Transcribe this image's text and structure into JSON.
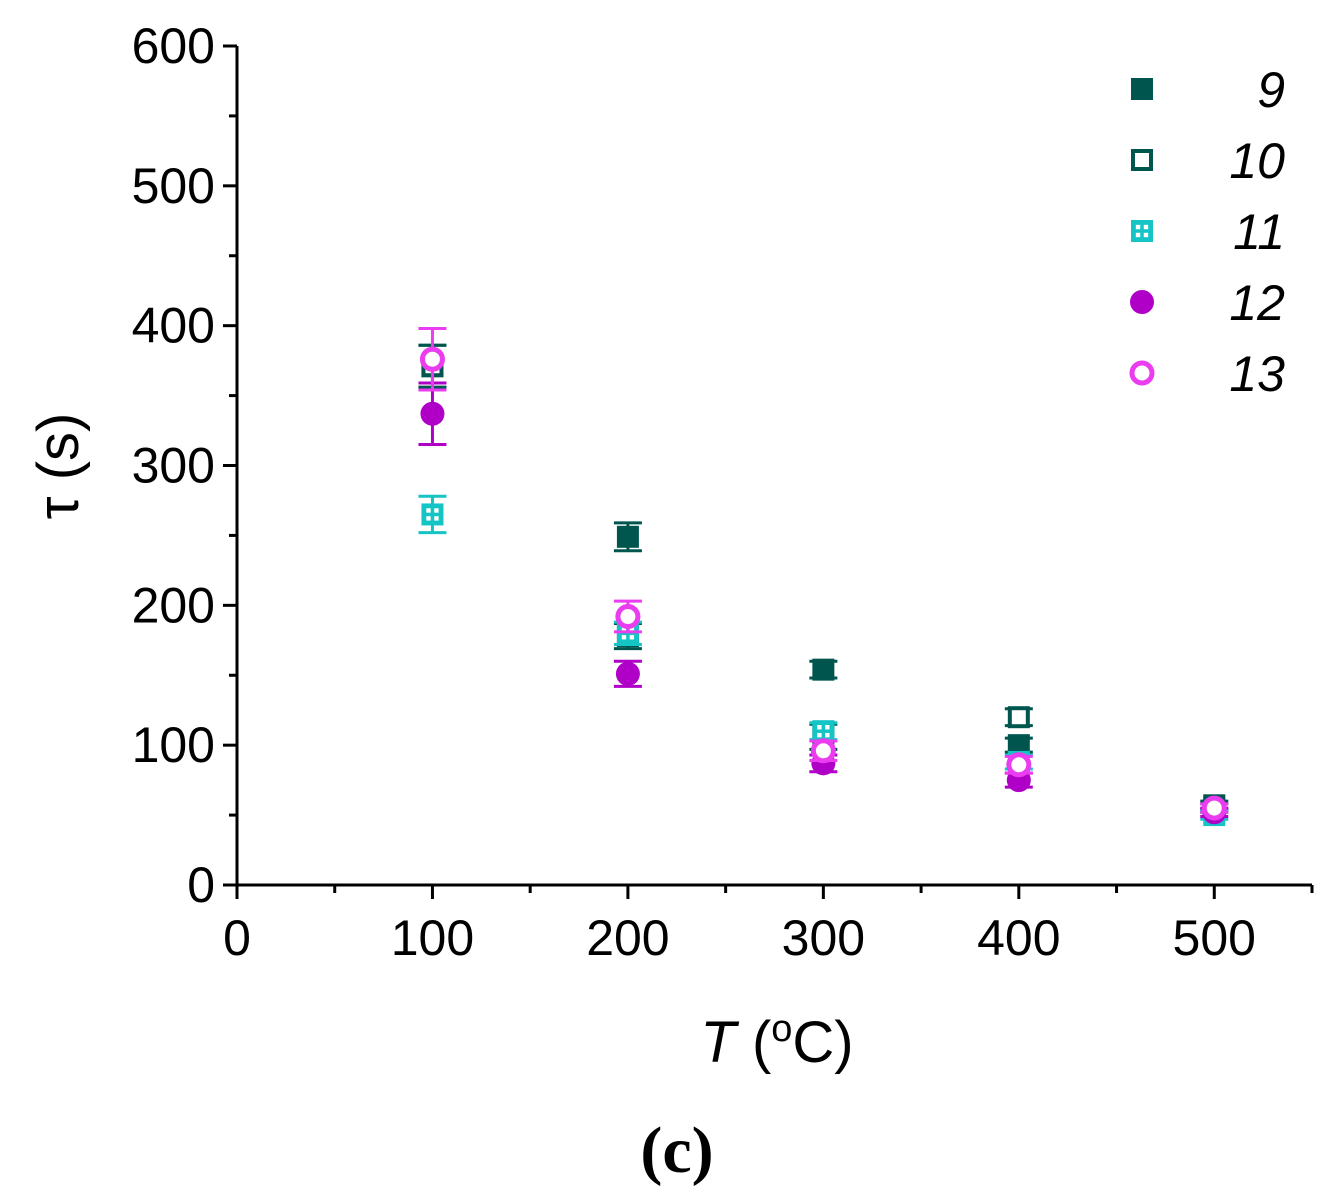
{
  "chart_data": {
    "type": "scatter",
    "xlabel_var": "T",
    "xlabel_open": " (",
    "xlabel_sup": "o",
    "xlabel_unit": "C)",
    "ylabel": "τ (s)",
    "caption": "(c)",
    "xlim": [
      0,
      550
    ],
    "ylim": [
      0,
      600
    ],
    "x_ticks": [
      0,
      100,
      200,
      300,
      400,
      500
    ],
    "y_ticks": [
      0,
      100,
      200,
      300,
      400,
      500,
      600
    ],
    "legend_position": "top-right",
    "series": [
      {
        "name": "9",
        "marker": "square-filled",
        "color": "#00564f",
        "x": [
          100,
          200,
          300,
          400,
          500
        ],
        "y": [
          371,
          249,
          154,
          100,
          55
        ],
        "err": [
          15,
          10,
          6,
          5,
          3
        ]
      },
      {
        "name": "10",
        "marker": "square-open",
        "color": "#00564f",
        "x": [
          100,
          200,
          300,
          400,
          500
        ],
        "y": [
          371,
          178,
          106,
          120,
          57
        ],
        "err": [
          15,
          9,
          9,
          6,
          3
        ]
      },
      {
        "name": "11",
        "marker": "square-grid",
        "color": "#15c4c4",
        "x": [
          100,
          200,
          300,
          400,
          500
        ],
        "y": [
          265,
          180,
          110,
          88,
          50
        ],
        "err": [
          13,
          8,
          6,
          5,
          3
        ]
      },
      {
        "name": "12",
        "marker": "circle-filled",
        "color": "#b000c8",
        "x": [
          100,
          200,
          300,
          400,
          500
        ],
        "y": [
          337,
          151,
          87,
          75,
          52
        ],
        "err": [
          22,
          9,
          6,
          5,
          3
        ]
      },
      {
        "name": "13",
        "marker": "circle-open",
        "color": "#ea3df0",
        "x": [
          100,
          200,
          300,
          400,
          500
        ],
        "y": [
          376,
          192,
          96,
          86,
          55
        ],
        "err": [
          22,
          11,
          7,
          6,
          3
        ]
      }
    ]
  }
}
